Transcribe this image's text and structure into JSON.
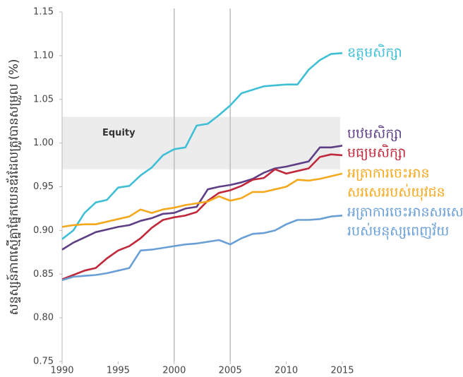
{
  "chart_data": {
    "type": "line",
    "y_label": "សន្ទស្សន៍ភាពស្មើគ្នាផ្នែកយេនឌ័រដែលត្រូវបានសម្រួល (%)",
    "x": [
      1990,
      1991,
      1992,
      1993,
      1994,
      1995,
      1996,
      1997,
      1998,
      1999,
      2000,
      2001,
      2002,
      2003,
      2004,
      2005,
      2006,
      2007,
      2008,
      2009,
      2010,
      2011,
      2012,
      2013,
      2014,
      2015
    ],
    "xlim": [
      1990,
      2015
    ],
    "xticks": [
      1990,
      1995,
      2000,
      2005,
      2010,
      2015
    ],
    "ylim": [
      0.75,
      1.15
    ],
    "yticks": [
      {
        "value": 0.75,
        "label": "0.75"
      },
      {
        "value": 0.8,
        "label": "0.80"
      },
      {
        "value": 0.85,
        "label": "0.85"
      },
      {
        "value": 0.9,
        "label": "0.90"
      },
      {
        "value": 0.95,
        "label": "0.95"
      },
      {
        "value": 1.0,
        "label": "1.00"
      },
      {
        "value": 1.05,
        "label": "1.05"
      },
      {
        "value": 1.1,
        "label": "1.10"
      },
      {
        "value": 1.15,
        "label": "1.15"
      }
    ],
    "vlines": [
      2000,
      2005
    ],
    "band": [
      0.97,
      1.03
    ],
    "band_label": "Equity",
    "series": [
      {
        "name": [
          "ឧត្តមសិក្សា"
        ],
        "color": "#3fbfd5",
        "values": [
          0.89,
          0.9,
          0.92,
          0.932,
          0.935,
          0.949,
          0.951,
          0.963,
          0.972,
          0.986,
          0.993,
          0.995,
          1.02,
          1.022,
          1.032,
          1.043,
          1.057,
          1.061,
          1.065,
          1.066,
          1.067,
          1.067,
          1.084,
          1.095,
          1.102,
          1.103
        ]
      },
      {
        "name": [
          "បឋមសិក្សា"
        ],
        "color": "#5e3f86",
        "values": [
          0.878,
          0.886,
          0.892,
          0.898,
          0.901,
          0.904,
          0.906,
          0.911,
          0.914,
          0.919,
          0.92,
          0.925,
          0.927,
          0.947,
          0.95,
          0.952,
          0.955,
          0.959,
          0.966,
          0.971,
          0.973,
          0.976,
          0.979,
          0.995,
          0.995,
          0.997
        ]
      },
      {
        "name": [
          "មធ្យមសិក្សា"
        ],
        "color": "#c0283c",
        "values": [
          0.844,
          0.849,
          0.854,
          0.857,
          0.868,
          0.877,
          0.882,
          0.891,
          0.903,
          0.912,
          0.915,
          0.917,
          0.921,
          0.934,
          0.943,
          0.946,
          0.951,
          0.958,
          0.96,
          0.97,
          0.965,
          0.968,
          0.971,
          0.984,
          0.987,
          0.986
        ]
      },
      {
        "name": [
          "អត្រាការចេះអាន",
          "សរសេររបស់យុវជន"
        ],
        "color": "#f5a81c",
        "values": [
          0.904,
          0.906,
          0.907,
          0.907,
          0.91,
          0.913,
          0.916,
          0.924,
          0.92,
          0.924,
          0.926,
          0.929,
          0.931,
          0.933,
          0.939,
          0.934,
          0.937,
          0.944,
          0.944,
          0.947,
          0.95,
          0.958,
          0.957,
          0.959,
          0.962,
          0.965
        ]
      },
      {
        "name": [
          "អត្រាការចេះអានសរសេរ",
          "របស់មនុស្សពេញវ័យ"
        ],
        "color": "#6a9fd6",
        "values": [
          0.843,
          0.847,
          0.848,
          0.849,
          0.851,
          0.854,
          0.857,
          0.877,
          0.878,
          0.88,
          0.882,
          0.884,
          0.885,
          0.887,
          0.889,
          0.884,
          0.891,
          0.896,
          0.897,
          0.9,
          0.907,
          0.912,
          0.912,
          0.913,
          0.916,
          0.917
        ]
      }
    ]
  }
}
